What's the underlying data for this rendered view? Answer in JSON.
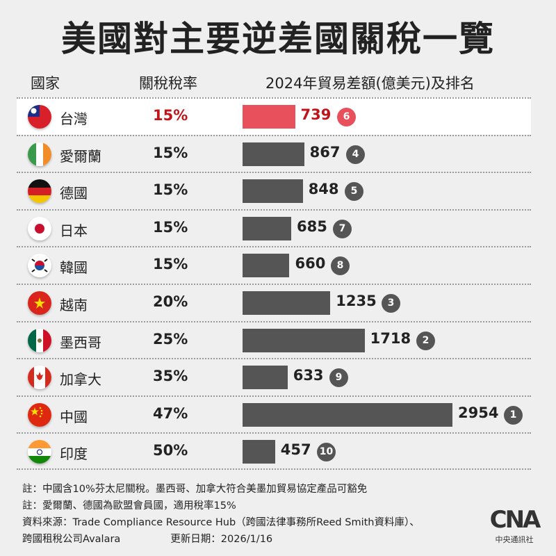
{
  "chart_data": {
    "type": "bar",
    "title": "美國對主要逆差國關稅一覽",
    "columns": [
      "國家",
      "關稅稅率",
      "2024年貿易差額(億美元)及排名"
    ],
    "highlight": "台灣",
    "colors": {
      "highlight": "#e8505b",
      "highlight_text": "#c0141b",
      "bar": "#555555"
    },
    "rows": [
      {
        "country": "台灣",
        "flag": "taiwan",
        "rate": "15%",
        "value": 739,
        "rank": 6
      },
      {
        "country": "愛爾蘭",
        "flag": "ireland",
        "rate": "15%",
        "value": 867,
        "rank": 4
      },
      {
        "country": "德國",
        "flag": "germany",
        "rate": "15%",
        "value": 848,
        "rank": 5
      },
      {
        "country": "日本",
        "flag": "japan",
        "rate": "15%",
        "value": 685,
        "rank": 7
      },
      {
        "country": "韓國",
        "flag": "korea",
        "rate": "15%",
        "value": 660,
        "rank": 8
      },
      {
        "country": "越南",
        "flag": "vietnam",
        "rate": "20%",
        "value": 1235,
        "rank": 3
      },
      {
        "country": "墨西哥",
        "flag": "mexico",
        "rate": "25%",
        "value": 1718,
        "rank": 2
      },
      {
        "country": "加拿大",
        "flag": "canada",
        "rate": "35%",
        "value": 633,
        "rank": 9
      },
      {
        "country": "中國",
        "flag": "china",
        "rate": "47%",
        "value": 2954,
        "rank": 1
      },
      {
        "country": "印度",
        "flag": "india",
        "rate": "50%",
        "value": 457,
        "rank": 10
      }
    ]
  },
  "notes": [
    "註：中國含10%芬太尼關稅。墨西哥、加拿大符合美墨加貿易協定產品可豁免",
    "註：愛爾蘭、德國為歐盟會員國，適用稅率15%",
    "資料來源：Trade Compliance Resource Hub（跨國法律事務所Reed Smith資料庫）、"
  ],
  "source_line2": "跨國租稅公司Avalara",
  "updated": "更新日期：2026/1/16",
  "logo": {
    "mark": "CNA",
    "sub": "中央通訊社"
  }
}
